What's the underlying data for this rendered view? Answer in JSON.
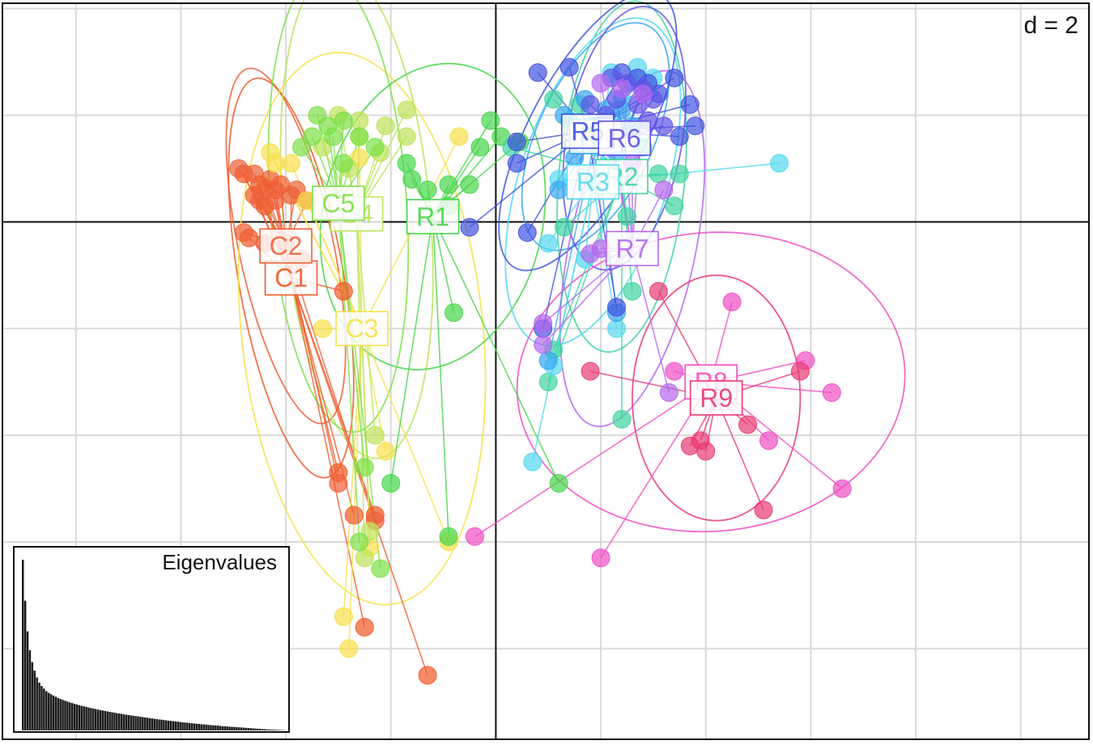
{
  "chart_data": {
    "type": "scatter",
    "scale_label": "d = 2",
    "grid": true,
    "xlim": [
      -9.4,
      11.3
    ],
    "ylim": [
      -9.7,
      4.1
    ],
    "groups": [
      {
        "name": "C1",
        "color": "#f05a28",
        "centroid": [
          -3.9,
          -1.05
        ],
        "ellipse": {
          "rx": 1.0,
          "ry": 3.8,
          "angle": -10
        },
        "points": [
          [
            -4.8,
            0.9
          ],
          [
            -4.5,
            0.7
          ],
          [
            -4.3,
            0.8
          ],
          [
            -4.6,
            0.5
          ],
          [
            -4.2,
            0.6
          ],
          [
            -3.9,
            0.5
          ],
          [
            -4.4,
            0.3
          ],
          [
            -4.7,
            -0.3
          ],
          [
            -4.0,
            -0.4
          ],
          [
            -3.7,
            -0.7
          ],
          [
            -2.9,
            -1.3
          ],
          [
            -3.0,
            -4.7
          ],
          [
            -2.7,
            -5.5
          ],
          [
            -2.3,
            -5.5
          ],
          [
            -2.5,
            -7.6
          ],
          [
            -1.3,
            -8.5
          ]
        ]
      },
      {
        "name": "C2",
        "color": "#ee6038",
        "centroid": [
          -4.0,
          -0.45
        ],
        "ellipse": {
          "rx": 0.9,
          "ry": 3.4,
          "angle": -12
        },
        "points": [
          [
            -4.9,
            1.0
          ],
          [
            -4.6,
            0.9
          ],
          [
            -4.4,
            0.6
          ],
          [
            -4.1,
            0.7
          ],
          [
            -3.8,
            0.6
          ],
          [
            -4.5,
            0.4
          ],
          [
            -4.2,
            0.4
          ],
          [
            -4.8,
            -0.2
          ],
          [
            -4.4,
            -0.4
          ],
          [
            -3.6,
            0.4
          ],
          [
            -3.0,
            -4.9
          ],
          [
            -2.3,
            -5.6
          ]
        ]
      },
      {
        "name": "C3",
        "color": "#f8e04a",
        "centroid": [
          -2.55,
          -2.0
        ],
        "ellipse": {
          "rx": 2.3,
          "ry": 5.2,
          "angle": -6
        },
        "points": [
          [
            -4.3,
            1.3
          ],
          [
            -4.2,
            1.1
          ],
          [
            -3.9,
            1.1
          ],
          [
            -3.6,
            0.4
          ],
          [
            -2.6,
            1.2
          ],
          [
            -2.4,
            -6.1
          ],
          [
            -2.9,
            -7.4
          ],
          [
            -2.8,
            -8.0
          ],
          [
            -0.9,
            -6.0
          ],
          [
            -0.7,
            1.6
          ],
          [
            -2.1,
            -4.3
          ],
          [
            -3.3,
            -2.0
          ]
        ]
      },
      {
        "name": "C4",
        "color": "#bde35a",
        "centroid": [
          -2.65,
          0.15
        ],
        "ellipse": {
          "rx": 1.4,
          "ry": 4.6,
          "angle": -5
        },
        "points": [
          [
            -3.0,
            2.0
          ],
          [
            -2.6,
            1.9
          ],
          [
            -2.1,
            1.8
          ],
          [
            -1.7,
            2.1
          ],
          [
            -1.7,
            1.6
          ],
          [
            -2.2,
            1.3
          ],
          [
            -2.6,
            1.6
          ],
          [
            -3.3,
            1.4
          ],
          [
            -2.8,
            1.0
          ],
          [
            -2.4,
            -5.8
          ],
          [
            -2.5,
            -6.3
          ],
          [
            -2.3,
            -4.0
          ]
        ]
      },
      {
        "name": "C5",
        "color": "#7ce046",
        "centroid": [
          -3.0,
          0.35
        ],
        "ellipse": {
          "rx": 1.3,
          "ry": 4.3,
          "angle": -4
        },
        "points": [
          [
            -3.4,
            2.0
          ],
          [
            -3.2,
            1.8
          ],
          [
            -2.9,
            1.9
          ],
          [
            -3.1,
            1.6
          ],
          [
            -2.6,
            1.6
          ],
          [
            -2.3,
            1.4
          ],
          [
            -3.5,
            1.6
          ],
          [
            -3.7,
            1.4
          ],
          [
            -2.9,
            1.1
          ],
          [
            -2.5,
            -4.6
          ],
          [
            -2.6,
            -6.0
          ],
          [
            -2.2,
            -6.5
          ]
        ]
      },
      {
        "name": "R1",
        "color": "#46d64a",
        "centroid": [
          -1.2,
          0.1
        ],
        "ellipse": {
          "rx": 2.1,
          "ry": 2.9,
          "angle": 12
        },
        "points": [
          [
            -1.7,
            1.1
          ],
          [
            -1.6,
            0.8
          ],
          [
            -1.3,
            0.6
          ],
          [
            -0.9,
            0.7
          ],
          [
            -0.9,
            0.3
          ],
          [
            -0.5,
            0.7
          ],
          [
            -0.3,
            1.4
          ],
          [
            -0.1,
            1.9
          ],
          [
            0.1,
            1.6
          ],
          [
            0.45,
            1.5
          ],
          [
            -0.9,
            -5.9
          ],
          [
            -2.0,
            -4.9
          ],
          [
            -0.8,
            -1.7
          ],
          [
            1.2,
            -4.9
          ]
        ]
      },
      {
        "name": "R2",
        "color": "#3fd4a0",
        "centroid": [
          2.4,
          0.85
        ],
        "ellipse": {
          "rx": 1.2,
          "ry": 3.3,
          "angle": 5
        },
        "points": [
          [
            1.1,
            2.3
          ],
          [
            1.4,
            1.9
          ],
          [
            1.6,
            2.2
          ],
          [
            3.1,
            0.9
          ],
          [
            3.5,
            0.9
          ],
          [
            3.4,
            0.3
          ],
          [
            2.8,
            1.4
          ],
          [
            2.5,
            0.1
          ],
          [
            1.3,
            -0.1
          ],
          [
            2.6,
            -1.3
          ],
          [
            2.4,
            -3.7
          ],
          [
            1.0,
            -3.0
          ],
          [
            1.1,
            -2.4
          ],
          [
            0.3,
            1.4
          ]
        ]
      },
      {
        "name": "R3",
        "color": "#54d8f0",
        "centroid": [
          1.85,
          0.75
        ],
        "ellipse": {
          "rx": 1.4,
          "ry": 3.2,
          "angle": 18
        },
        "points": [
          [
            2.2,
            2.8
          ],
          [
            2.6,
            2.6
          ],
          [
            2.7,
            2.9
          ],
          [
            3.0,
            2.7
          ],
          [
            2.4,
            2.3
          ],
          [
            5.4,
            1.1
          ],
          [
            1.9,
            1.4
          ],
          [
            1.2,
            0.8
          ],
          [
            1.0,
            -0.4
          ],
          [
            1.7,
            -0.7
          ],
          [
            0.7,
            -4.5
          ],
          [
            1.1,
            -2.7
          ],
          [
            2.3,
            -2.0
          ]
        ]
      },
      {
        "name": "R4",
        "color": "#3aa6f0",
        "centroid": [
          1.9,
          1.6
        ],
        "ellipse": {
          "rx": 1.1,
          "ry": 2.3,
          "angle": 25
        },
        "points": [
          [
            1.3,
            2.0
          ],
          [
            1.7,
            2.3
          ],
          [
            2.1,
            2.1
          ],
          [
            2.4,
            2.1
          ],
          [
            1.9,
            1.8
          ],
          [
            2.6,
            1.8
          ],
          [
            1.5,
            1.2
          ],
          [
            1.2,
            0.6
          ],
          [
            2.3,
            1.3
          ],
          [
            2.3,
            -1.7
          ],
          [
            1.0,
            -2.6
          ]
        ]
      },
      {
        "name": "R5",
        "color": "#4052e0",
        "centroid": [
          1.75,
          1.7
        ],
        "ellipse": {
          "rx": 1.1,
          "ry": 2.9,
          "angle": 28
        },
        "points": [
          [
            0.8,
            2.8
          ],
          [
            1.4,
            2.9
          ],
          [
            2.4,
            2.8
          ],
          [
            2.7,
            2.7
          ],
          [
            2.9,
            2.6
          ],
          [
            3.1,
            2.4
          ],
          [
            3.4,
            2.7
          ],
          [
            3.7,
            2.2
          ],
          [
            3.8,
            1.8
          ],
          [
            3.5,
            1.6
          ],
          [
            0.4,
            1.1
          ],
          [
            -0.5,
            -0.1
          ],
          [
            0.6,
            -0.2
          ],
          [
            0.9,
            -2.0
          ],
          [
            2.3,
            -1.6
          ],
          [
            0.4,
            1.5
          ]
        ]
      },
      {
        "name": "R6",
        "color": "#5f52e6",
        "centroid": [
          2.45,
          1.57
        ],
        "ellipse": {
          "rx": 1.1,
          "ry": 2.5,
          "angle": 10
        },
        "points": [
          [
            2.2,
            2.7
          ],
          [
            2.5,
            2.6
          ],
          [
            2.8,
            2.5
          ],
          [
            3.0,
            2.3
          ],
          [
            2.7,
            2.2
          ],
          [
            2.3,
            2.3
          ],
          [
            2.1,
            2.0
          ],
          [
            2.9,
            1.9
          ],
          [
            3.2,
            1.8
          ],
          [
            1.8,
            2.2
          ]
        ]
      },
      {
        "name": "R7",
        "color": "#b566ee",
        "centroid": [
          2.6,
          -0.5
        ],
        "ellipse": {
          "rx": 1.2,
          "ry": 3.4,
          "angle": 12
        },
        "points": [
          [
            2.0,
            2.6
          ],
          [
            2.4,
            2.5
          ],
          [
            2.8,
            2.4
          ],
          [
            2.2,
            1.4
          ],
          [
            2.6,
            1.1
          ],
          [
            1.8,
            -0.6
          ],
          [
            0.9,
            -1.9
          ],
          [
            0.9,
            -2.3
          ],
          [
            3.3,
            -3.2
          ],
          [
            2.0,
            -0.5
          ],
          [
            3.2,
            0.6
          ]
        ]
      },
      {
        "name": "R8",
        "color": "#f04ec4",
        "centroid": [
          4.1,
          -3.0
        ],
        "ellipse": {
          "rx": 3.7,
          "ry": 2.8,
          "angle": -5
        },
        "points": [
          [
            4.5,
            -1.5
          ],
          [
            5.9,
            -2.6
          ],
          [
            6.4,
            -3.2
          ],
          [
            6.6,
            -5.0
          ],
          [
            5.2,
            -4.1
          ],
          [
            2.0,
            -6.3
          ],
          [
            -0.4,
            -5.9
          ],
          [
            3.4,
            -2.8
          ]
        ]
      },
      {
        "name": "R9",
        "color": "#e83a72",
        "centroid": [
          4.2,
          -3.3
        ],
        "ellipse": {
          "rx": 1.6,
          "ry": 2.3,
          "angle": 0
        },
        "points": [
          [
            3.1,
            -1.3
          ],
          [
            1.8,
            -2.8
          ],
          [
            5.8,
            -2.8
          ],
          [
            4.4,
            -3.1
          ],
          [
            4.8,
            -3.8
          ],
          [
            3.7,
            -4.2
          ],
          [
            4.0,
            -4.3
          ],
          [
            5.1,
            -5.4
          ],
          [
            3.9,
            -4.1
          ]
        ]
      }
    ]
  },
  "inset": {
    "title": "Eigenvalues",
    "bar_color": "#1a1a1a",
    "values": [
      100,
      76,
      58,
      47,
      40,
      35,
      31,
      28,
      26,
      24.5,
      23,
      22,
      21.2,
      20.4,
      19.7,
      19,
      18.4,
      17.9,
      17.4,
      16.9,
      16.4,
      16,
      15.6,
      15.2,
      14.8,
      14.4,
      14.1,
      13.8,
      13.4,
      13.1,
      12.8,
      12.5,
      12.2,
      11.9,
      11.7,
      11.4,
      11.1,
      10.9,
      10.6,
      10.4,
      10.1,
      9.9,
      9.7,
      9.4,
      9.2,
      9,
      8.8,
      8.6,
      8.4,
      8.2,
      8,
      7.8,
      7.6,
      7.4,
      7.2,
      7,
      6.8,
      6.6,
      6.4,
      6.3,
      6.1,
      5.9,
      5.7,
      5.6,
      5.4,
      5.2,
      5.1,
      4.9,
      4.8,
      4.6,
      4.5,
      4.3,
      4.2,
      4,
      3.9,
      3.8,
      3.6,
      3.5,
      3.4,
      3.2,
      3.1,
      3,
      2.9,
      2.8,
      2.6,
      2.5,
      2.4,
      2.3,
      2.2,
      2.1,
      2,
      1.9,
      1.8,
      1.7,
      1.6,
      1.5,
      1.4,
      1.3,
      1.2,
      1.1,
      1.0,
      0.9,
      0.8,
      0.7,
      0.6,
      0.5,
      0.45,
      0.4,
      0.35,
      0.3,
      0.25,
      0.2
    ]
  }
}
